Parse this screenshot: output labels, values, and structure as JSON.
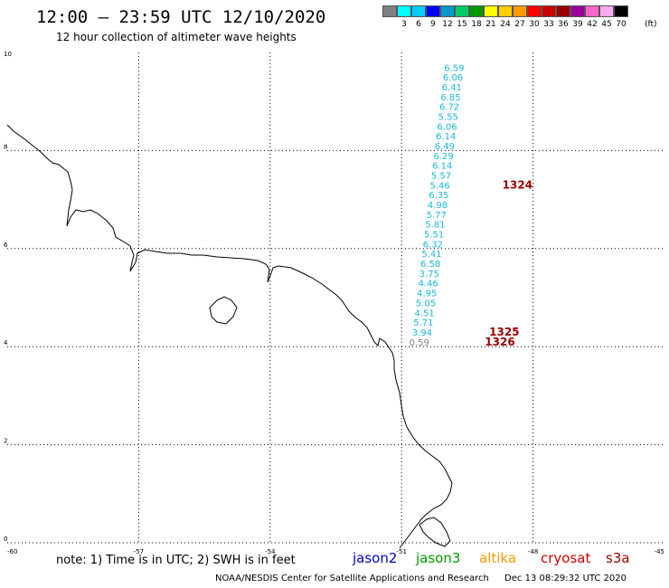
{
  "title": "12:00 – 23:59 UTC 12/10/2020",
  "subtitle": "12 hour collection of altimeter wave heights",
  "legend": {
    "colors": [
      "#808080",
      "#00ffff",
      "#00ccff",
      "#0000ff",
      "#0099cc",
      "#00cc66",
      "#009900",
      "#ffff00",
      "#ffcc00",
      "#ff9900",
      "#ff0000",
      "#cc0000",
      "#990000",
      "#990099",
      "#ff66cc",
      "#ffaaee",
      "#000000"
    ],
    "labels": [
      "3",
      "6",
      "9",
      "12",
      "15",
      "18",
      "21",
      "24",
      "27",
      "30",
      "33",
      "36",
      "39",
      "42",
      "45",
      "70"
    ],
    "units": "(ft)"
  },
  "axes": {
    "x_ticks": [
      "-60",
      "-57",
      "-54",
      "-51",
      "-48",
      "-45"
    ],
    "y_ticks": [
      "0",
      "2",
      "4",
      "6",
      "8",
      "10"
    ]
  },
  "wave_heights": [
    {
      "value": "6.59",
      "lat": 9.7
    },
    {
      "value": "6.06",
      "lat": 9.5
    },
    {
      "value": "6.41",
      "lat": 9.3
    },
    {
      "value": "6.85",
      "lat": 9.1
    },
    {
      "value": "6.72",
      "lat": 8.9
    },
    {
      "value": "5.55",
      "lat": 8.7
    },
    {
      "value": "6.06",
      "lat": 8.5
    },
    {
      "value": "6.14",
      "lat": 8.3
    },
    {
      "value": "6.49",
      "lat": 8.1
    },
    {
      "value": "6.29",
      "lat": 7.9
    },
    {
      "value": "6.14",
      "lat": 7.7
    },
    {
      "value": "5.57",
      "lat": 7.5
    },
    {
      "value": "5.46",
      "lat": 7.3
    },
    {
      "value": "6.35",
      "lat": 7.1
    },
    {
      "value": "4.98",
      "lat": 6.9
    },
    {
      "value": "5.77",
      "lat": 6.7
    },
    {
      "value": "5.81",
      "lat": 6.5
    },
    {
      "value": "5.51",
      "lat": 6.3
    },
    {
      "value": "6.32",
      "lat": 6.1
    },
    {
      "value": "5.41",
      "lat": 5.9
    },
    {
      "value": "6.58",
      "lat": 5.7
    },
    {
      "value": "3.75",
      "lat": 5.5
    },
    {
      "value": "4.46",
      "lat": 5.3
    },
    {
      "value": "4.95",
      "lat": 5.1
    },
    {
      "value": "5.05",
      "lat": 4.9
    },
    {
      "value": "4.51",
      "lat": 4.7
    },
    {
      "value": "5.71",
      "lat": 4.5
    },
    {
      "value": "3.94",
      "lat": 4.3
    }
  ],
  "grey_value": "0.59",
  "pass_labels": [
    "1324",
    "1325",
    "1326"
  ],
  "note": "note: 1) Time is in UTC; 2) SWH is in feet",
  "satellites": [
    {
      "name": "jason2",
      "color": "#0000cc"
    },
    {
      "name": "jason3",
      "color": "#009900"
    },
    {
      "name": "altika",
      "color": "#ff9900"
    },
    {
      "name": "cryosat",
      "color": "#cc0000"
    },
    {
      "name": "s3a",
      "color": "#990000"
    }
  ],
  "footer_left": "NOAA/NESDIS Center for Satellite Applications and Research",
  "footer_right": "Dec 13 08:29:32 UTC 2020"
}
